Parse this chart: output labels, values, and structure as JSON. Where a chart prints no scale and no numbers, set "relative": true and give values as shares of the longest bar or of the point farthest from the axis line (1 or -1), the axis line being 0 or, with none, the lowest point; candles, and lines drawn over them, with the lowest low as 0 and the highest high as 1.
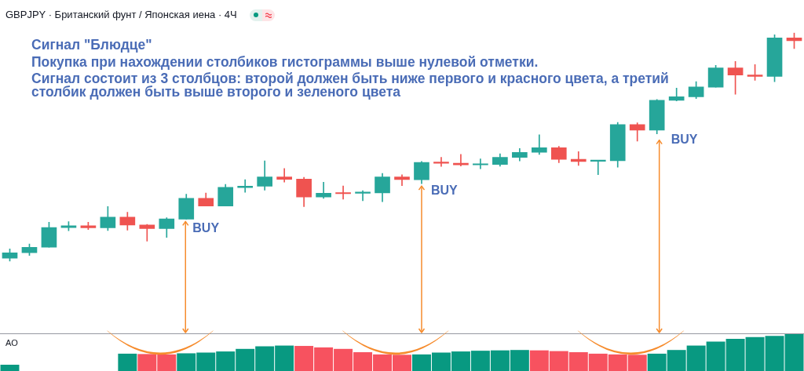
{
  "chart_data": [
    {
      "type": "candlestick",
      "title": "GBPJPY · Британский фунт / Японская иена · 4Ч",
      "relative": true,
      "annotations": [
        "Сигнал \"Блюдце\"",
        "Покупка при нахождении столбиков гистограммы выше нулевой отметки.",
        "Сигнал состоит из 3 столбцов: второй должен быть ниже первого и красного цвета, а третий столбик должен быть выше второго и зеленого цвета",
        "BUY",
        "BUY",
        "BUY"
      ],
      "categories": [
        null,
        null,
        null,
        null,
        null,
        null,
        null,
        null,
        null,
        null,
        null,
        null,
        null,
        null,
        null,
        null,
        null,
        null,
        null,
        null,
        null,
        null,
        null,
        null,
        null,
        null,
        null,
        null,
        null,
        null,
        null,
        null,
        null,
        null,
        null,
        null,
        null,
        null,
        null,
        null,
        null
      ],
      "ohlc": [
        [
          0.014,
          0.055,
          0,
          0.038
        ],
        [
          0.038,
          0.076,
          0.026,
          0.062
        ],
        [
          0.062,
          0.171,
          0.062,
          0.148
        ],
        [
          0.148,
          0.174,
          0.134,
          0.156
        ],
        [
          0.156,
          0.171,
          0.139,
          0.147
        ],
        [
          0.147,
          0.24,
          0.135,
          0.194
        ],
        [
          0.194,
          0.215,
          0.137,
          0.159
        ],
        [
          0.159,
          0.162,
          0.089,
          0.144
        ],
        [
          0.144,
          0.191,
          0.105,
          0.186
        ],
        [
          0.185,
          0.294,
          0.185,
          0.276
        ],
        [
          0.276,
          0.299,
          0.242,
          0.242
        ],
        [
          0.242,
          0.337,
          0.242,
          0.324
        ],
        [
          0.323,
          0.357,
          0.302,
          0.329
        ],
        [
          0.329,
          0.44,
          0.312,
          0.369
        ],
        [
          0.369,
          0.406,
          0.347,
          0.359
        ],
        [
          0.36,
          0.368,
          0.24,
          0.282
        ],
        [
          0.282,
          0.346,
          0.276,
          0.298
        ],
        [
          0.299,
          0.33,
          0.272,
          0.296
        ],
        [
          0.298,
          0.309,
          0.265,
          0.302
        ],
        [
          0.3,
          0.385,
          0.261,
          0.369
        ],
        [
          0.369,
          0.379,
          0.331,
          0.358
        ],
        [
          0.357,
          0.437,
          0.34,
          0.433
        ],
        [
          0.434,
          0.455,
          0.415,
          0.429
        ],
        [
          0.429,
          0.468,
          0.417,
          0.422
        ],
        [
          0.422,
          0.448,
          0.405,
          0.425
        ],
        [
          0.424,
          0.471,
          0.416,
          0.455
        ],
        [
          0.455,
          0.494,
          0.439,
          0.477
        ],
        [
          0.477,
          0.554,
          0.468,
          0.497
        ],
        [
          0.497,
          0.503,
          0.432,
          0.446
        ],
        [
          0.447,
          0.48,
          0.42,
          0.437
        ],
        [
          0.438,
          0.442,
          0.379,
          0.442
        ],
        [
          0.44,
          0.608,
          0.412,
          0.598
        ],
        [
          0.598,
          0.606,
          0.526,
          0.574
        ],
        [
          0.574,
          0.708,
          0.558,
          0.705
        ],
        [
          0.704,
          0.758,
          0.702,
          0.72
        ],
        [
          0.72,
          0.786,
          0.712,
          0.763
        ],
        [
          0.762,
          0.857,
          0.762,
          0.846
        ],
        [
          0.846,
          0.874,
          0.731,
          0.815
        ],
        [
          0.815,
          0.861,
          0.792,
          0.809
        ],
        [
          0.809,
          0.991,
          0.786,
          0.977
        ],
        [
          0.977,
          1,
          0.931,
          0.965
        ]
      ],
      "colors": [
        "#26a69a",
        "#26a69a",
        "#26a69a",
        "#26a69a",
        "#ef5350",
        "#26a69a",
        "#ef5350",
        "#ef5350",
        "#26a69a",
        "#26a69a",
        "#ef5350",
        "#26a69a",
        "#26a69a",
        "#26a69a",
        "#ef5350",
        "#ef5350",
        "#26a69a",
        "#ef5350",
        "#26a69a",
        "#26a69a",
        "#ef5350",
        "#26a69a",
        "#ef5350",
        "#ef5350",
        "#26a69a",
        "#26a69a",
        "#26a69a",
        "#26a69a",
        "#ef5350",
        "#ef5350",
        "#26a69a",
        "#26a69a",
        "#ef5350",
        "#26a69a",
        "#26a69a",
        "#26a69a",
        "#26a69a",
        "#ef5350",
        "#ef5350",
        "#26a69a",
        "#ef5350"
      ]
    },
    {
      "type": "bar",
      "title": "AO",
      "relative": true,
      "categories": [
        null,
        null,
        null,
        null,
        null,
        null,
        null,
        null,
        null,
        null,
        null,
        null,
        null,
        null,
        null,
        null,
        null,
        null,
        null,
        null,
        null,
        null,
        null,
        null,
        null,
        null,
        null,
        null,
        null,
        null,
        null,
        null,
        null,
        null,
        null,
        null,
        null,
        null,
        null,
        null,
        null
      ],
      "values": [
        0.17,
        null,
        null,
        null,
        null,
        null,
        0.47,
        0.46,
        0.45,
        0.48,
        0.5,
        0.53,
        0.6,
        0.67,
        0.69,
        0.68,
        0.64,
        0.6,
        0.51,
        0.45,
        0.44,
        0.45,
        0.5,
        0.53,
        0.55,
        0.56,
        0.57,
        0.56,
        0.54,
        0.51,
        0.47,
        0.45,
        0.44,
        0.47,
        0.57,
        0.69,
        0.8,
        0.87,
        0.92,
        0.95,
        1
      ],
      "colors": [
        "#089981",
        "#089981",
        "#089981",
        "#089981",
        "#089981",
        "#089981",
        "#089981",
        "#f7525f",
        "#f7525f",
        "#089981",
        "#089981",
        "#089981",
        "#089981",
        "#089981",
        "#089981",
        "#f7525f",
        "#f7525f",
        "#f7525f",
        "#f7525f",
        "#f7525f",
        "#f7525f",
        "#089981",
        "#089981",
        "#089981",
        "#089981",
        "#089981",
        "#089981",
        "#f7525f",
        "#f7525f",
        "#f7525f",
        "#f7525f",
        "#f7525f",
        "#f7525f",
        "#089981",
        "#089981",
        "#089981",
        "#089981",
        "#089981",
        "#089981",
        "#089981",
        "#089981"
      ]
    }
  ]
}
